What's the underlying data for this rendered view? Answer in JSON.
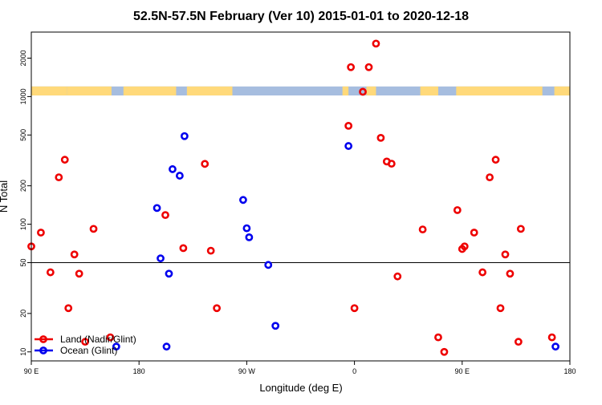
{
  "chart_data": {
    "type": "scatter",
    "title": "52.5N-57.5N February (Ver 10)   2015-01-01 to 2020-12-18",
    "xlabel": "Longitude (deg E)",
    "ylabel": "N Total",
    "x_ticks": [
      {
        "value": -180,
        "label": "90 E"
      },
      {
        "value": -90,
        "label": "180"
      },
      {
        "value": 0,
        "label": "90 W"
      },
      {
        "value": 90,
        "label": "0"
      },
      {
        "value": 180,
        "label": "90 E"
      },
      {
        "value": 270,
        "label": "180"
      }
    ],
    "xlim": [
      -180,
      270
    ],
    "y_scale": "log",
    "ylim": [
      8.5,
      3200
    ],
    "y_ticks": [
      10,
      20,
      50,
      100,
      200,
      500,
      1000,
      2000
    ],
    "reference_line": 50,
    "land_mask_band": {
      "y_range": [
        1020,
        1200
      ],
      "land_color": "#FFD97A",
      "ocean_color": "#A6BDDF"
    },
    "legend_position": "bottom-left",
    "series": [
      {
        "name": "Land (Nadir/Glint)",
        "color": "#EE0000",
        "points": [
          [
            -180,
            67
          ],
          [
            -172,
            86
          ],
          [
            -164,
            42
          ],
          [
            -157,
            233
          ],
          [
            -152,
            320
          ],
          [
            -149,
            22
          ],
          [
            -144,
            58
          ],
          [
            -140,
            41
          ],
          [
            -135,
            12
          ],
          [
            -128,
            92
          ],
          [
            -114,
            13
          ],
          [
            -68,
            118
          ],
          [
            -53,
            65
          ],
          [
            -35,
            297
          ],
          [
            -30,
            62
          ],
          [
            -25,
            22
          ],
          [
            85,
            590
          ],
          [
            87,
            1700
          ],
          [
            90,
            22
          ],
          [
            97,
            1090
          ],
          [
            102,
            1700
          ],
          [
            108,
            2600
          ],
          [
            112,
            475
          ],
          [
            117,
            310
          ],
          [
            121,
            298
          ],
          [
            126,
            39
          ],
          [
            147,
            91
          ],
          [
            160,
            13
          ],
          [
            165,
            10
          ],
          [
            176,
            129
          ],
          [
            180,
            64
          ],
          [
            182,
            67
          ],
          [
            190,
            86
          ],
          [
            197,
            42
          ],
          [
            203,
            233
          ],
          [
            208,
            320
          ],
          [
            212,
            22
          ],
          [
            216,
            58
          ],
          [
            220,
            41
          ],
          [
            227,
            12
          ],
          [
            229,
            92
          ],
          [
            255,
            13
          ]
        ]
      },
      {
        "name": "Ocean (Glint)",
        "color": "#0000EE",
        "points": [
          [
            -109,
            11
          ],
          [
            -75,
            134
          ],
          [
            -72,
            54
          ],
          [
            -67,
            11
          ],
          [
            -65,
            41
          ],
          [
            -62,
            270
          ],
          [
            -56,
            240
          ],
          [
            -52,
            490
          ],
          [
            -3,
            155
          ],
          [
            0,
            93
          ],
          [
            2,
            79
          ],
          [
            18,
            48
          ],
          [
            24,
            16
          ],
          [
            85,
            410
          ],
          [
            258,
            11
          ]
        ]
      }
    ]
  }
}
